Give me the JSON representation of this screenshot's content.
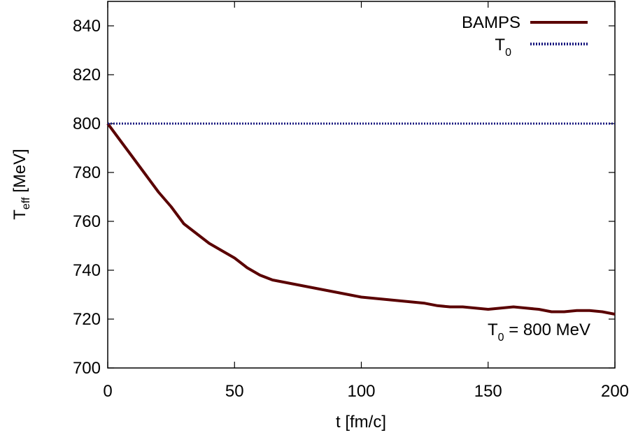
{
  "chart_data": {
    "type": "line",
    "xlabel": "t [fm/c]",
    "ylabel": {
      "main": "T",
      "sub": "eff",
      "unit": " [MeV]"
    },
    "xlim": [
      0,
      200
    ],
    "ylim": [
      700,
      850
    ],
    "x_ticks": [
      0,
      50,
      100,
      150,
      200
    ],
    "y_ticks": [
      700,
      720,
      740,
      760,
      780,
      800,
      820,
      840
    ],
    "grid": false,
    "legend_position": "top-right",
    "annotation": {
      "main": "T",
      "sub": "0",
      "rest": " = 800 MeV"
    },
    "series": [
      {
        "name": "BAMPS",
        "color": "#5a0000",
        "style": "solid",
        "x": [
          0,
          5,
          10,
          15,
          20,
          25,
          30,
          35,
          40,
          45,
          50,
          55,
          60,
          65,
          70,
          75,
          80,
          85,
          90,
          95,
          100,
          105,
          110,
          115,
          120,
          125,
          130,
          135,
          140,
          145,
          150,
          155,
          160,
          165,
          170,
          175,
          180,
          185,
          190,
          195,
          200
        ],
        "y": [
          800,
          793,
          786,
          779,
          772,
          766,
          759,
          755,
          751,
          748,
          745,
          741,
          738,
          736,
          735,
          734,
          733,
          732,
          731,
          730,
          729,
          728.5,
          728,
          727.5,
          727,
          726.5,
          725.5,
          725,
          725,
          724.5,
          724,
          724.5,
          725,
          724.5,
          724,
          723,
          723,
          723.5,
          723.5,
          723,
          722
        ]
      },
      {
        "name": {
          "main": "T",
          "sub": "0"
        },
        "color": "#1a1a80",
        "style": "dotted",
        "x": [
          0,
          200
        ],
        "y": [
          800,
          800
        ]
      }
    ]
  }
}
